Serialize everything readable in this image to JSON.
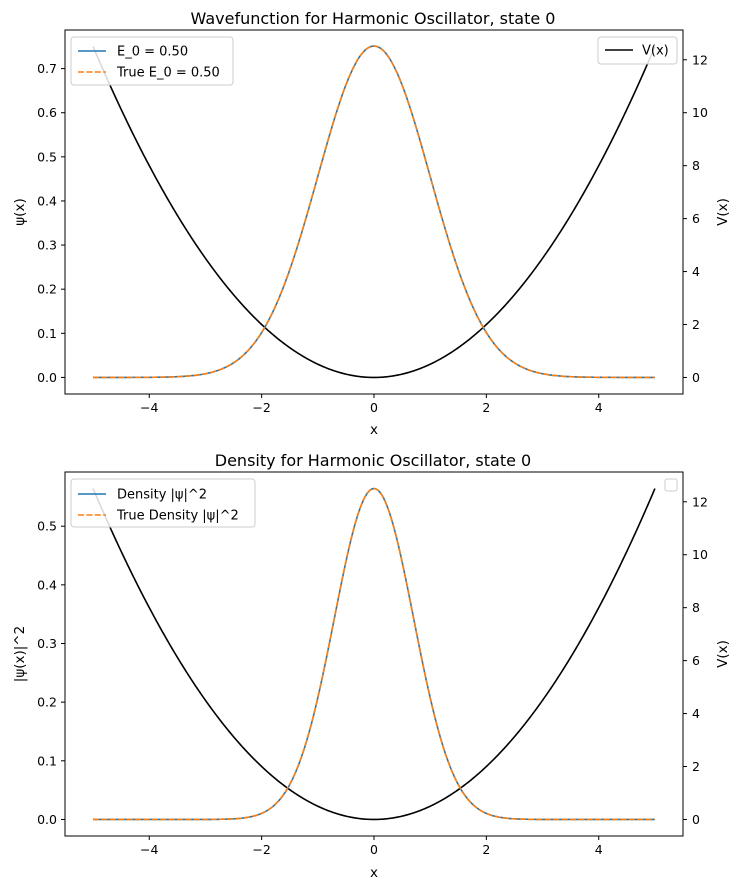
{
  "chart_data": [
    {
      "type": "line",
      "title": "Wavefunction for Harmonic Oscillator, state 0",
      "xlabel": "x",
      "ylabel": "ψ(x)",
      "y2label": "V(x)",
      "xlim": [
        -5.5,
        5.5
      ],
      "ylim": [
        -0.0376,
        0.7875
      ],
      "y2lim": [
        -0.625,
        13.125
      ],
      "xticks": [
        "−4",
        "−2",
        "0",
        "2",
        "4"
      ],
      "yticks": [
        "0.0",
        "0.1",
        "0.2",
        "0.3",
        "0.4",
        "0.5",
        "0.6",
        "0.7"
      ],
      "y2ticks": [
        "0",
        "2",
        "4",
        "6",
        "8",
        "10",
        "12"
      ],
      "grid": false,
      "legend_left": [
        "E_0 = 0.50",
        "True E_0 = 0.50"
      ],
      "legend_right": [
        "V(x)"
      ],
      "legend_left_placement": "top-left",
      "legend_right_placement": "top-right",
      "series": [
        {
          "name": "E_0 = 0.50",
          "axis": "left",
          "color": "#1f77b4",
          "style": "solid",
          "function": "ground-state wavefunction",
          "peak": 0.7511,
          "x_range": [
            -5,
            5
          ]
        },
        {
          "name": "True E_0 = 0.50",
          "axis": "left",
          "color": "#ff7f0e",
          "style": "dashed",
          "function": "ground-state wavefunction",
          "peak": 0.7511,
          "x_range": [
            -5,
            5
          ]
        },
        {
          "name": "V(x)",
          "axis": "right",
          "color": "#000000",
          "style": "solid",
          "function": "harmonic potential",
          "min": 0,
          "max": 12.5,
          "x_range": [
            -5,
            5
          ]
        }
      ]
    },
    {
      "type": "line",
      "title": "Density for Harmonic Oscillator, state 0",
      "xlabel": "x",
      "ylabel": "|ψ(x)|^2",
      "y2label": "V(x)",
      "xlim": [
        -5.5,
        5.5
      ],
      "ylim": [
        -0.0282,
        0.5924
      ],
      "y2lim": [
        -0.625,
        13.125
      ],
      "xticks": [
        "−4",
        "−2",
        "0",
        "2",
        "4"
      ],
      "yticks": [
        "0.0",
        "0.1",
        "0.2",
        "0.3",
        "0.4",
        "0.5"
      ],
      "y2ticks": [
        "0",
        "2",
        "4",
        "6",
        "8",
        "10",
        "12"
      ],
      "grid": false,
      "legend_left": [
        "Density |ψ|^2",
        "True Density |ψ|^2"
      ],
      "legend_right": [],
      "legend_left_placement": "top-left",
      "legend_right_placement": "top-right",
      "series": [
        {
          "name": "Density |ψ|^2",
          "axis": "left",
          "color": "#1f77b4",
          "style": "solid",
          "function": "ground-state density",
          "peak": 0.5642,
          "x_range": [
            -5,
            5
          ]
        },
        {
          "name": "True Density |ψ|^2",
          "axis": "left",
          "color": "#ff7f0e",
          "style": "dashed",
          "function": "ground-state density",
          "peak": 0.5642,
          "x_range": [
            -5,
            5
          ]
        },
        {
          "name": "V(x)",
          "axis": "right",
          "color": "#000000",
          "style": "solid",
          "function": "harmonic potential",
          "min": 0,
          "max": 12.5,
          "x_range": [
            -5,
            5
          ]
        }
      ]
    }
  ]
}
